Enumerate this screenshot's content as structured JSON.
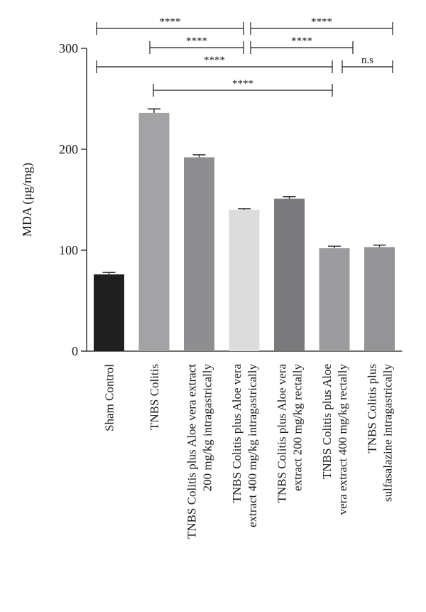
{
  "chart_data": {
    "type": "bar",
    "xlabel": "",
    "ylabel": "MDA (μg/mg)",
    "ylim": [
      0,
      300
    ],
    "yticks": [
      0,
      100,
      200,
      300
    ],
    "grid": false,
    "categories": [
      [
        "Sham Control"
      ],
      [
        "TNBS Colitis"
      ],
      [
        "TNBS Colitis plus Aloe vera extract",
        "200 mg/kg intragastrically"
      ],
      [
        "TNBS Colitis plus Aloe vera",
        "extract 400 mg/kg intragastrically"
      ],
      [
        "TNBS Colitis plus Aloe vera",
        "extract 200 mg/kg rectally"
      ],
      [
        "TNBS Colitis plus Aloe",
        "vera extract 400 mg/kg rectally"
      ],
      [
        "TNBS Colitis plus",
        "sulfasalazine intragastrically"
      ]
    ],
    "values": [
      76,
      236,
      192,
      140,
      151,
      102,
      103
    ],
    "errors": [
      2,
      4,
      2.5,
      1,
      2,
      2,
      2
    ],
    "colors": [
      "#1f1f1f",
      "#a3a3a5",
      "#8e8e90",
      "#dcdcdc",
      "#7a7a7c",
      "#9c9c9e",
      "#949496"
    ],
    "significance": [
      {
        "from": 0,
        "to": 3,
        "label": "****"
      },
      {
        "from": 3,
        "to": 6,
        "label": "****"
      },
      {
        "from": 1,
        "to": 3,
        "label": "****"
      },
      {
        "from": 3,
        "to": 5,
        "label": "****"
      },
      {
        "from": 0,
        "to": 5,
        "label": "****"
      },
      {
        "from": 5,
        "to": 6,
        "label": "n.s"
      },
      {
        "from": 1,
        "to": 5,
        "label": "****"
      }
    ]
  }
}
